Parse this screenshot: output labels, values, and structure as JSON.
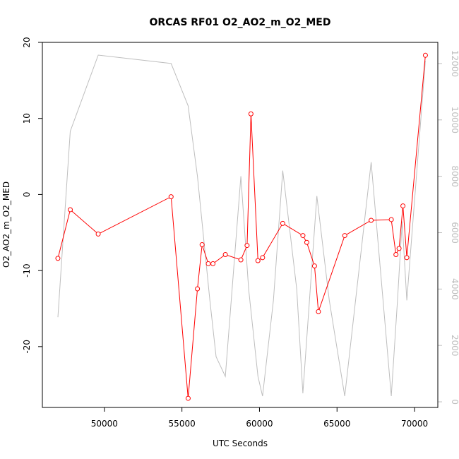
{
  "chart_data": {
    "type": "line",
    "title": "ORCAS RF01 O2_AO2_m_O2_MED",
    "xlabel": "UTC Seconds",
    "ylabel": "O2_AO2_m_O2_MED",
    "xlim": [
      46000,
      71500
    ],
    "ylim": [
      -28,
      20
    ],
    "y2lim": [
      -200,
      12750
    ],
    "x_ticks": [
      {
        "value": 50000,
        "label": "50000"
      },
      {
        "value": 55000,
        "label": "55000"
      },
      {
        "value": 60000,
        "label": "60000"
      },
      {
        "value": 65000,
        "label": "65000"
      },
      {
        "value": 70000,
        "label": "70000"
      }
    ],
    "y_ticks": [
      {
        "value": -20,
        "label": "-20"
      },
      {
        "value": -10,
        "label": "-10"
      },
      {
        "value": 0,
        "label": "0"
      },
      {
        "value": 10,
        "label": "10"
      },
      {
        "value": 20,
        "label": "20"
      }
    ],
    "y2_ticks": [
      {
        "value": 0,
        "label": "0"
      },
      {
        "value": 2000,
        "label": "2000"
      },
      {
        "value": 4000,
        "label": "4000"
      },
      {
        "value": 6000,
        "label": "6000"
      },
      {
        "value": 8000,
        "label": "8000"
      },
      {
        "value": 10000,
        "label": "10000"
      },
      {
        "value": 12000,
        "label": "12000"
      }
    ],
    "colors": {
      "primary": "#ff0000",
      "secondary": "#bebebe",
      "axis": "#000000"
    },
    "series": [
      {
        "axis": "right",
        "style": "line",
        "x": [
          47000,
          47800,
          49600,
          54300,
          55400,
          56000,
          56800,
          57200,
          57800,
          58800,
          59300,
          59900,
          60200,
          60900,
          61500,
          62400,
          62800,
          63700,
          64500,
          65500,
          67200,
          68500,
          68900,
          69200,
          69500,
          70700
        ],
        "y": [
          3000,
          9600,
          12300,
          12000,
          10500,
          8000,
          3600,
          1600,
          900,
          8000,
          4000,
          900,
          200,
          3600,
          8200,
          4000,
          300,
          7300,
          3600,
          200,
          8500,
          200,
          3600,
          6400,
          3600,
          12100
        ]
      },
      {
        "axis": "left",
        "style": "line-points",
        "x": [
          47000,
          47800,
          49600,
          54300,
          55400,
          56000,
          56300,
          56700,
          57000,
          57800,
          58800,
          59200,
          59450,
          59900,
          60200,
          61500,
          62800,
          63050,
          63550,
          63800,
          65500,
          67200,
          68500,
          68800,
          69000,
          69250,
          69500,
          70700
        ],
        "y": [
          -8.4,
          -2.0,
          -5.2,
          -0.3,
          -26.8,
          -12.4,
          -6.6,
          -9.1,
          -9.1,
          -7.9,
          -8.6,
          -6.7,
          10.6,
          -8.7,
          -8.3,
          -3.8,
          -5.4,
          -6.3,
          -9.4,
          -15.4,
          -5.4,
          -3.4,
          -3.3,
          -7.9,
          -7.1,
          -1.5,
          -8.3,
          18.3
        ]
      }
    ]
  }
}
